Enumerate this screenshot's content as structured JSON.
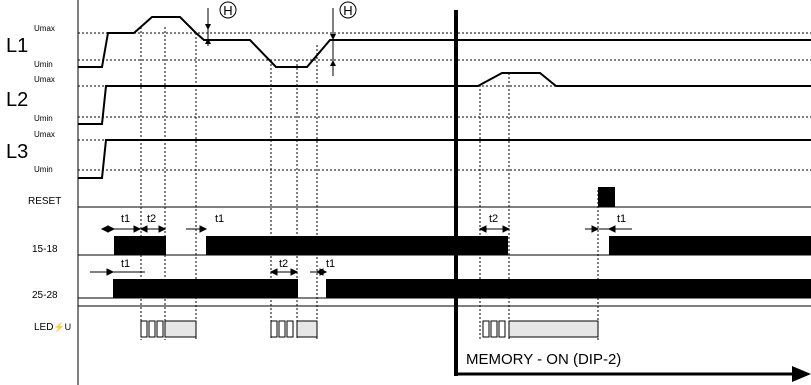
{
  "labels": {
    "L1": "L1",
    "L2": "L2",
    "L3": "L3",
    "umax": "Umax",
    "umin": "Umin",
    "reset": "RESET",
    "out1": "15-18",
    "out2": "25-28",
    "led": "LED",
    "led_symbol": "⚡U",
    "hysteresis": "H",
    "t1": "t1",
    "t2": "t2",
    "memory": "MEMORY - ON (DIP-2)"
  },
  "colors": {
    "ink": "#000000",
    "led_fill": "#e6e6e6",
    "dotted": "#000000"
  }
}
